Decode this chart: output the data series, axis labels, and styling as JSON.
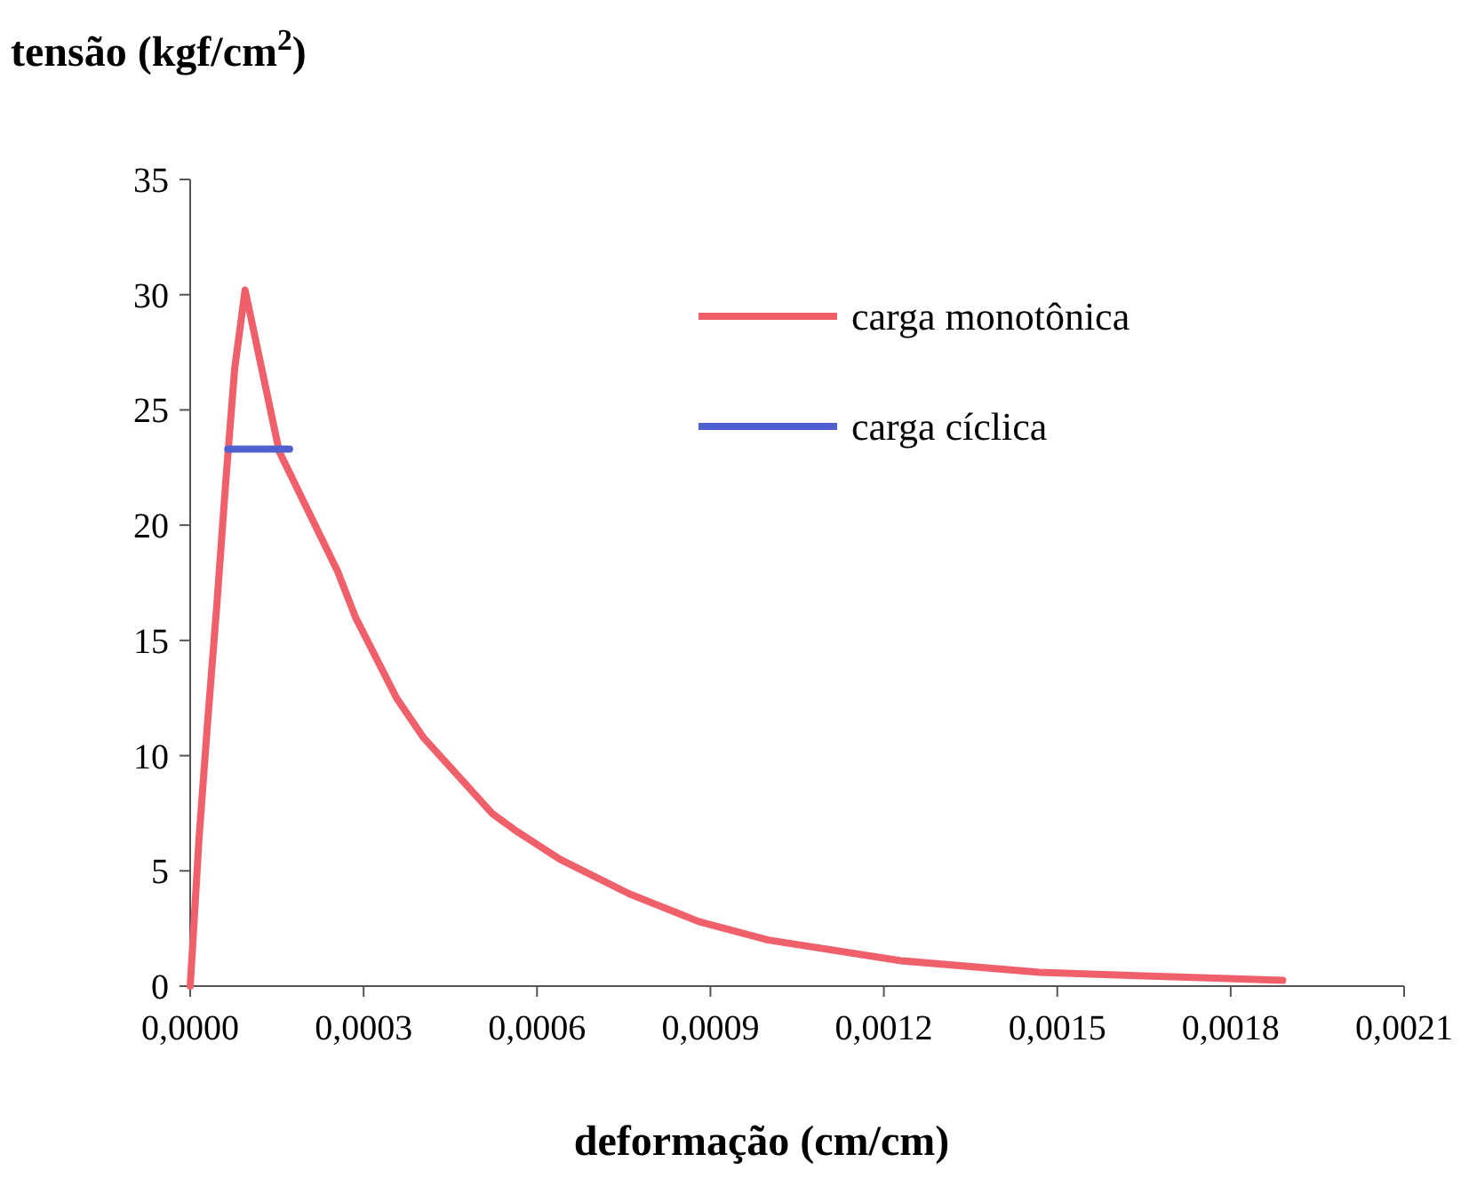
{
  "chart_data": {
    "type": "line",
    "ylabel": "tensão (kgf/cm$^{2}$)",
    "xlabel": "deformação (cm/cm)",
    "xlim": [
      0,
      0.0021
    ],
    "xticks": [
      {
        "value": 0,
        "label": "0,0000"
      },
      {
        "value": 0.0003,
        "label": "0,0003"
      },
      {
        "value": 0.0006,
        "label": "0,0006"
      },
      {
        "value": 0.0009,
        "label": "0,0009"
      },
      {
        "value": 0.0012,
        "label": "0,0012"
      },
      {
        "value": 0.0015,
        "label": "0,0015"
      },
      {
        "value": 0.0018,
        "label": "0,0018"
      },
      {
        "value": 0.0021,
        "label": "0,0021"
      }
    ],
    "ylim": [
      0,
      35
    ],
    "yticks": [
      0,
      5,
      10,
      15,
      20,
      25,
      30,
      35
    ],
    "grid": false,
    "legend": "top right",
    "marker": "none",
    "line_style": "solid",
    "series": [
      {
        "name": "carga monotônica",
        "color": "#f0606a",
        "x": [
          0,
          3e-06,
          1.5e-05,
          3e-05,
          4.6e-05,
          6.1e-05,
          7.7e-05,
          9.5e-05,
          0.000154,
          0.000255,
          0.000286,
          0.000357,
          0.000403,
          0.000522,
          0.00056,
          0.00064,
          0.00076,
          0.00088,
          0.001,
          0.00123,
          0.00147,
          0.0017,
          0.00189
        ],
        "values": [
          0,
          1.2,
          6.3,
          11.4,
          16.5,
          21.7,
          26.8,
          30.2,
          23.2,
          18.0,
          16.0,
          12.5,
          10.8,
          7.5,
          6.8,
          5.5,
          4.0,
          2.8,
          2.0,
          1.1,
          0.6,
          0.4,
          0.25
        ]
      },
      {
        "name": "carga cíclica",
        "color": "#5060d0",
        "x": [
          6.5e-05,
          0.000172
        ],
        "values": [
          23.3,
          23.3
        ]
      }
    ]
  }
}
